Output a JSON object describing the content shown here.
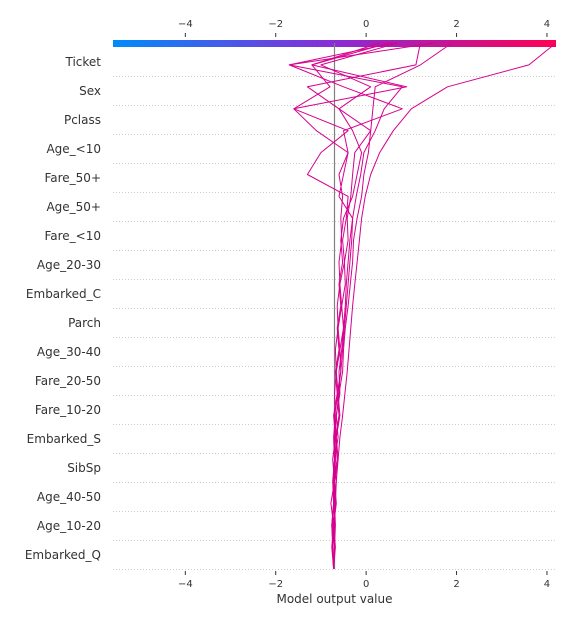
{
  "chart_data": {
    "type": "line",
    "title": "",
    "xlabel": "Model output value",
    "ylabel": "",
    "xlim": [
      -5.6,
      4.2
    ],
    "xticks": [
      -4,
      -2,
      0,
      2,
      4
    ],
    "xtick_labels": [
      "−4",
      "−2",
      "0",
      "2",
      "4"
    ],
    "base_value": -0.7,
    "grid": "dotted horizontal",
    "colormap": [
      "#008bfb",
      "#ff0052"
    ],
    "line_color": "#d6008e",
    "features": [
      "Ticket",
      "Sex",
      "Pclass",
      "Age_<10",
      "Fare_50+",
      "Age_50+",
      "Fare_<10",
      "Age_20-30",
      "Embarked_C",
      "Parch",
      "Age_30-40",
      "Fare_20-50",
      "Fare_10-20",
      "Embarked_S",
      "SibSp",
      "Age_40-50",
      "Age_10-20",
      "Embarked_Q"
    ],
    "series": [
      {
        "values": [
          -0.72,
          -0.74,
          -0.7,
          -0.68,
          -0.66,
          -0.62,
          -0.58,
          -0.52,
          -0.47,
          -0.42,
          -0.38,
          -0.34,
          -0.3,
          -0.25,
          -0.2,
          -0.15,
          -0.1,
          -0.02,
          0.1,
          0.3,
          0.6,
          1.0,
          1.8,
          3.6,
          4.2
        ]
      },
      {
        "values": [
          -0.72,
          -0.73,
          -0.76,
          -0.72,
          -0.7,
          -0.68,
          -0.7,
          -0.66,
          -0.6,
          -0.52,
          -0.5,
          -0.46,
          -0.4,
          -0.35,
          -0.3,
          -0.28,
          -0.2,
          -0.1,
          -0.05,
          0.05,
          0.1,
          0.15,
          0.2,
          1.2,
          1.9
        ]
      },
      {
        "values": [
          -0.72,
          -0.74,
          -0.7,
          -0.72,
          -0.66,
          -0.7,
          -0.62,
          -0.66,
          -0.58,
          -0.6,
          -0.54,
          -0.5,
          -0.46,
          -0.44,
          -0.4,
          -0.36,
          -0.3,
          -0.22,
          -0.12,
          -0.05,
          0.2,
          0.4,
          0.8,
          -1.7,
          1.5
        ]
      },
      {
        "values": [
          -0.72,
          -0.7,
          -0.74,
          -0.68,
          -0.72,
          -0.64,
          -0.68,
          -0.6,
          -0.64,
          -0.56,
          -0.58,
          -0.5,
          -0.54,
          -0.46,
          -0.48,
          -0.4,
          -0.42,
          -0.34,
          -0.3,
          -0.25,
          0.1,
          -0.6,
          -1.3,
          1.1,
          1.2
        ]
      },
      {
        "values": [
          -0.72,
          -0.76,
          -0.72,
          -0.78,
          -0.7,
          -0.74,
          -0.68,
          -0.72,
          -0.64,
          -0.68,
          -0.6,
          -0.64,
          -0.56,
          -0.6,
          -0.52,
          -0.56,
          -0.5,
          -0.3,
          -0.2,
          -0.1,
          -0.3,
          -0.6,
          0.1,
          -1.0,
          0.7
        ]
      },
      {
        "values": [
          -0.72,
          -0.7,
          -0.68,
          -0.7,
          -0.72,
          -0.68,
          -0.66,
          -0.7,
          -0.62,
          -0.66,
          -0.58,
          -0.62,
          -0.54,
          -0.58,
          -0.48,
          -0.52,
          -0.44,
          -0.4,
          -1.3,
          -1.0,
          -0.4,
          -1.6,
          -0.8,
          -1.2,
          0.5
        ]
      },
      {
        "values": [
          -0.72,
          -0.68,
          -0.72,
          -0.66,
          -0.7,
          -0.62,
          -0.66,
          -0.58,
          -0.62,
          -0.56,
          -0.52,
          -0.48,
          -0.44,
          -0.4,
          -0.36,
          -0.32,
          -0.3,
          -0.6,
          -0.5,
          -0.4,
          -0.5,
          0.8,
          -0.5,
          -1.7,
          0.6
        ]
      },
      {
        "values": [
          -0.72,
          -0.74,
          -0.76,
          -0.72,
          -0.74,
          -0.7,
          -0.72,
          -0.68,
          -0.7,
          -0.66,
          -0.68,
          -0.62,
          -0.64,
          -0.58,
          -0.6,
          -0.54,
          -0.56,
          -0.52,
          -0.6,
          -0.4,
          -1.1,
          -1.6,
          0.9,
          -1.2,
          0.3
        ]
      }
    ]
  }
}
